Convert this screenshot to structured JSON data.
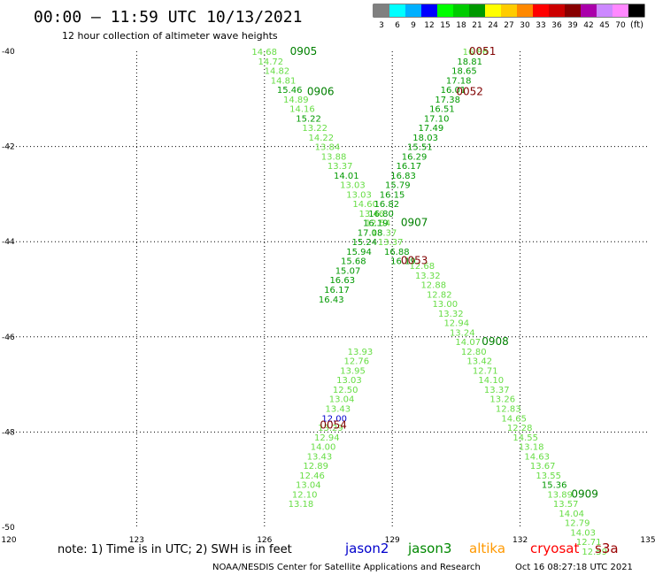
{
  "header": {
    "title": "00:00 – 11:59 UTC 10/13/2021",
    "subtitle": "12 hour collection of altimeter wave heights"
  },
  "legend": {
    "unit": "(ft)",
    "bins": [
      {
        "label": "3",
        "color": "#808080"
      },
      {
        "label": "6",
        "color": "#00ffff"
      },
      {
        "label": "9",
        "color": "#00b0ff"
      },
      {
        "label": "12",
        "color": "#0000ff"
      },
      {
        "label": "15",
        "color": "#00ff00"
      },
      {
        "label": "18",
        "color": "#00cc00"
      },
      {
        "label": "21",
        "color": "#009900"
      },
      {
        "label": "24",
        "color": "#ffff00"
      },
      {
        "label": "27",
        "color": "#ffcc00"
      },
      {
        "label": "30",
        "color": "#ff8800"
      },
      {
        "label": "33",
        "color": "#ff0000"
      },
      {
        "label": "36",
        "color": "#cc0000"
      },
      {
        "label": "39",
        "color": "#880000"
      },
      {
        "label": "42",
        "color": "#aa00aa"
      },
      {
        "label": "45",
        "color": "#cc88ff"
      },
      {
        "label": "70",
        "color": "#ff88ff"
      },
      {
        "label": "",
        "color": "#000000"
      }
    ]
  },
  "footer": {
    "note": "note: 1) Time is in UTC; 2) SWH is in feet",
    "credit": "NOAA/NESDIS Center for Satellite Applications and Research",
    "timestamp": "Oct 16 08:27:18 UTC 2021",
    "missions": [
      {
        "name": "jason2",
        "color": "#0000cc"
      },
      {
        "name": "jason3",
        "color": "#008800"
      },
      {
        "name": "altika",
        "color": "#ff9900"
      },
      {
        "name": "cryosat",
        "color": "#ff0000"
      },
      {
        "name": "s3a",
        "color": "#990000"
      }
    ]
  },
  "chart_data": {
    "type": "scatter",
    "x_range": [
      120,
      135
    ],
    "y_range": [
      -50,
      -40
    ],
    "x_ticks": [
      120,
      123,
      126,
      129,
      132,
      135
    ],
    "y_ticks": [
      -40,
      -42,
      -44,
      -46,
      -48,
      -50
    ],
    "grid": true,
    "colors": {
      "light": "#66dd44",
      "dark": "#009900",
      "blue": "#0000cc",
      "time_dark": "#800000",
      "time_green": "#008000"
    },
    "time_labels": [
      {
        "text": "0905",
        "x": 126.6,
        "y": -40,
        "color": "time_green"
      },
      {
        "text": "0906",
        "x": 127.0,
        "y": -40.85,
        "color": "time_green"
      },
      {
        "text": "0051",
        "x": 130.8,
        "y": -40,
        "color": "time_dark"
      },
      {
        "text": "0052",
        "x": 130.5,
        "y": -40.85,
        "color": "time_dark"
      },
      {
        "text": "0907",
        "x": 129.2,
        "y": -43.6,
        "color": "time_green"
      },
      {
        "text": "0053",
        "x": 129.2,
        "y": -44.4,
        "color": "time_dark"
      },
      {
        "text": "0908",
        "x": 131.1,
        "y": -46.1,
        "color": "time_green"
      },
      {
        "text": "0054",
        "x": 127.3,
        "y": -47.85,
        "color": "time_dark"
      },
      {
        "text": "0909",
        "x": 133.2,
        "y": -49.3,
        "color": "time_green"
      }
    ],
    "tracks": [
      {
        "name": "track-0905",
        "x_start": 125.7,
        "y_start": -40,
        "x_step": 0.148,
        "y_step": -0.2,
        "values": [
          "14.68",
          "14.72",
          "14.82",
          "14.81",
          "15.46",
          "14.89",
          "14.16",
          "15.22",
          "13.22",
          "14.22",
          "13.84",
          "13.88",
          "13.37",
          "14.01",
          "13.03",
          "13.03",
          "14.60",
          "13.46",
          "12.54",
          "13.37",
          "13.37",
          "16.88",
          "16.19"
        ],
        "colors": [
          "light",
          "light",
          "light",
          "light",
          "dark",
          "light",
          "light",
          "dark",
          "light",
          "light",
          "light",
          "light",
          "light",
          "dark",
          "light",
          "light",
          "light",
          "light",
          "light",
          "light",
          "light",
          "dark",
          "dark"
        ]
      },
      {
        "name": "track-0051",
        "x_start": 130.65,
        "y_start": -40,
        "x_step": -0.13,
        "y_step": -0.2,
        "values": [
          "16.86",
          "18.81",
          "18.65",
          "17.18",
          "16.01",
          "17.38",
          "16.51",
          "17.10",
          "17.49",
          "18.03",
          "15.51",
          "16.29",
          "16.17",
          "16.83",
          "15.79",
          "16.15",
          "16.82",
          "16.80",
          "16.19",
          "17.08",
          "15.24",
          "15.94",
          "15.68",
          "15.07",
          "16.63",
          "16.17",
          "16.43"
        ],
        "colors": [
          "light",
          "dark",
          "dark",
          "dark",
          "dark",
          "dark",
          "dark",
          "dark",
          "dark",
          "dark",
          "dark",
          "dark",
          "dark",
          "dark",
          "dark",
          "dark",
          "dark",
          "dark",
          "dark",
          "dark",
          "dark",
          "dark",
          "dark",
          "dark",
          "dark",
          "dark",
          "dark"
        ]
      },
      {
        "name": "track-0054",
        "x_start": 127.95,
        "y_start": -46.3,
        "x_step": -0.087,
        "y_step": -0.2,
        "values": [
          "13.93",
          "12.76",
          "13.95",
          "13.03",
          "12.50",
          "13.04",
          "13.43",
          "12.00",
          "13.29",
          "12.94",
          "14.00",
          "13.43",
          "12.89",
          "12.46",
          "13.04",
          "12.10",
          "13.18"
        ],
        "colors": [
          "light",
          "light",
          "light",
          "light",
          "light",
          "light",
          "light",
          "blue",
          "light",
          "light",
          "light",
          "light",
          "light",
          "light",
          "light",
          "light",
          "light"
        ]
      },
      {
        "name": "track-0908",
        "x_start": 129.4,
        "y_start": -44.5,
        "x_step": 0.135,
        "y_step": -0.2,
        "values": [
          "12.68",
          "13.32",
          "12.88",
          "12.82",
          "13.00",
          "13.32",
          "12.94",
          "13.24",
          "14.07",
          "12.80",
          "13.42",
          "12.71",
          "14.10",
          "13.37",
          "13.26",
          "12.83",
          "14.65",
          "12.28",
          "14.55",
          "13.18",
          "14.63",
          "13.67",
          "13.55",
          "15.36",
          "13.89",
          "13.57",
          "14.04",
          "12.79",
          "14.03",
          "12.71",
          "12.59"
        ],
        "colors": [
          "light",
          "light",
          "light",
          "light",
          "light",
          "light",
          "light",
          "light",
          "light",
          "light",
          "light",
          "light",
          "light",
          "light",
          "light",
          "light",
          "light",
          "light",
          "light",
          "light",
          "light",
          "light",
          "light",
          "dark",
          "light",
          "light",
          "light",
          "light",
          "light",
          "light",
          "light"
        ]
      }
    ]
  }
}
